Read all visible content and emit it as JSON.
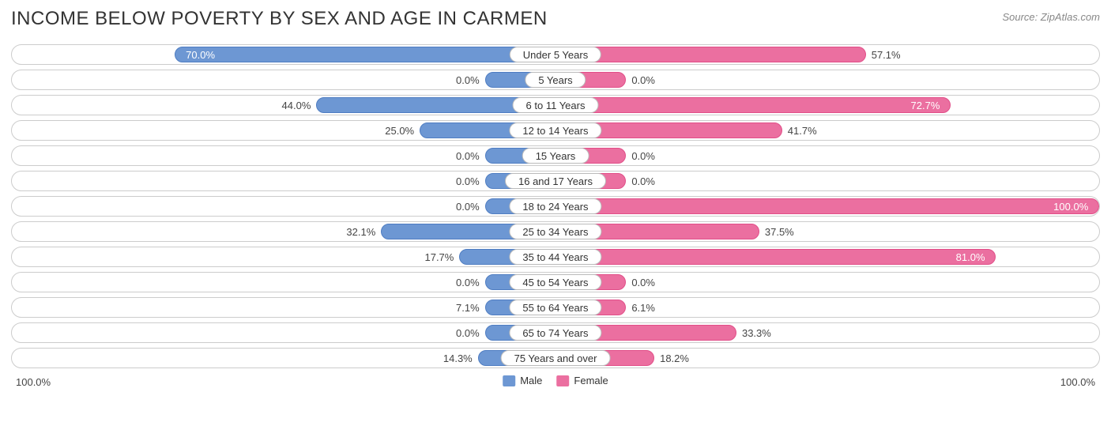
{
  "header": {
    "title": "INCOME BELOW POVERTY BY SEX AND AGE IN CARMEN",
    "source": "Source: ZipAtlas.com"
  },
  "chart": {
    "type": "diverging-bar",
    "male_color": "#6d97d3",
    "male_border": "#4f7dc2",
    "female_color": "#eb6fa0",
    "female_border": "#e14e88",
    "row_border_color": "#cccccc",
    "row_bg": "#ffffff",
    "background_color": "#ffffff",
    "label_fontsize": 13,
    "title_fontsize": 24,
    "min_bar_pct": 13,
    "axis_max": 100.0,
    "rows": [
      {
        "label": "Under 5 Years",
        "male": 70.0,
        "female": 57.1
      },
      {
        "label": "5 Years",
        "male": 0.0,
        "female": 0.0
      },
      {
        "label": "6 to 11 Years",
        "male": 44.0,
        "female": 72.7
      },
      {
        "label": "12 to 14 Years",
        "male": 25.0,
        "female": 41.7
      },
      {
        "label": "15 Years",
        "male": 0.0,
        "female": 0.0
      },
      {
        "label": "16 and 17 Years",
        "male": 0.0,
        "female": 0.0
      },
      {
        "label": "18 to 24 Years",
        "male": 0.0,
        "female": 100.0
      },
      {
        "label": "25 to 34 Years",
        "male": 32.1,
        "female": 37.5
      },
      {
        "label": "35 to 44 Years",
        "male": 17.7,
        "female": 81.0
      },
      {
        "label": "45 to 54 Years",
        "male": 0.0,
        "female": 0.0
      },
      {
        "label": "55 to 64 Years",
        "male": 7.1,
        "female": 6.1
      },
      {
        "label": "65 to 74 Years",
        "male": 0.0,
        "female": 33.3
      },
      {
        "label": "75 Years and over",
        "male": 14.3,
        "female": 18.2
      }
    ]
  },
  "footer": {
    "axis_left": "100.0%",
    "axis_right": "100.0%",
    "legend": [
      {
        "label": "Male",
        "color": "#6d97d3"
      },
      {
        "label": "Female",
        "color": "#eb6fa0"
      }
    ]
  }
}
